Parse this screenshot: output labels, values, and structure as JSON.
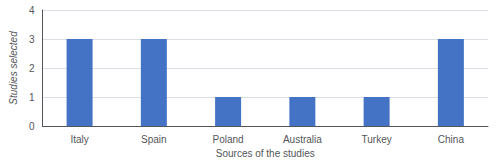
{
  "chart_data": {
    "type": "bar",
    "categories": [
      "Italy",
      "Spain",
      "Poland",
      "Australia",
      "Turkey",
      "China"
    ],
    "values": [
      3,
      3,
      1,
      1,
      1,
      3
    ],
    "color": "#4472C4",
    "xlabel": "Sources of the studies",
    "ylabel": "Studies selected",
    "ylim": [
      0,
      4
    ],
    "yticks": [
      0,
      1,
      2,
      3,
      4
    ],
    "grid": true
  }
}
